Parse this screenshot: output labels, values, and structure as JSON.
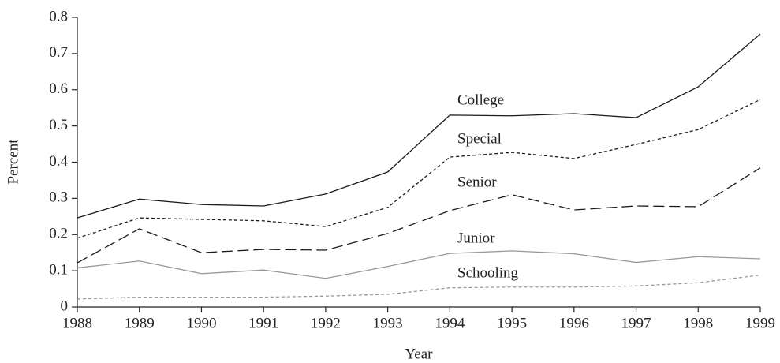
{
  "chart_data": {
    "type": "line",
    "x_label": "Year",
    "y_label": "Percent",
    "x": [
      1988,
      1989,
      1990,
      1991,
      1992,
      1993,
      1994,
      1995,
      1996,
      1997,
      1998,
      1999
    ],
    "xlim": [
      1988,
      1999
    ],
    "xticks": [
      1988,
      1989,
      1990,
      1991,
      1992,
      1993,
      1994,
      1995,
      1996,
      1997,
      1998,
      1999
    ],
    "ylim": [
      0,
      0.8
    ],
    "yticks": [
      0,
      0.1,
      0.2,
      0.3,
      0.4,
      0.5,
      0.6,
      0.7,
      0.8
    ],
    "grid": false,
    "series": [
      {
        "name": "College",
        "color": "#1a1a1a",
        "dash": "solid",
        "values": [
          0.246,
          0.298,
          0.283,
          0.279,
          0.312,
          0.373,
          0.53,
          0.528,
          0.534,
          0.523,
          0.608,
          0.754
        ]
      },
      {
        "name": "Special",
        "color": "#1a1a1a",
        "dash": "dotted",
        "values": [
          0.19,
          0.246,
          0.242,
          0.238,
          0.222,
          0.275,
          0.414,
          0.427,
          0.41,
          0.449,
          0.49,
          0.573
        ]
      },
      {
        "name": "Senior",
        "color": "#1a1a1a",
        "dash": "dashed",
        "values": [
          0.122,
          0.216,
          0.15,
          0.159,
          0.157,
          0.203,
          0.266,
          0.31,
          0.268,
          0.279,
          0.277,
          0.384
        ]
      },
      {
        "name": "Junior",
        "color": "#999999",
        "dash": "solid",
        "values": [
          0.108,
          0.127,
          0.092,
          0.102,
          0.079,
          0.112,
          0.148,
          0.155,
          0.147,
          0.123,
          0.139,
          0.133
        ]
      },
      {
        "name": "Schooling",
        "color": "#999999",
        "dash": "dotted",
        "values": [
          0.022,
          0.027,
          0.027,
          0.027,
          0.03,
          0.035,
          0.053,
          0.055,
          0.055,
          0.058,
          0.067,
          0.088
        ]
      }
    ]
  }
}
